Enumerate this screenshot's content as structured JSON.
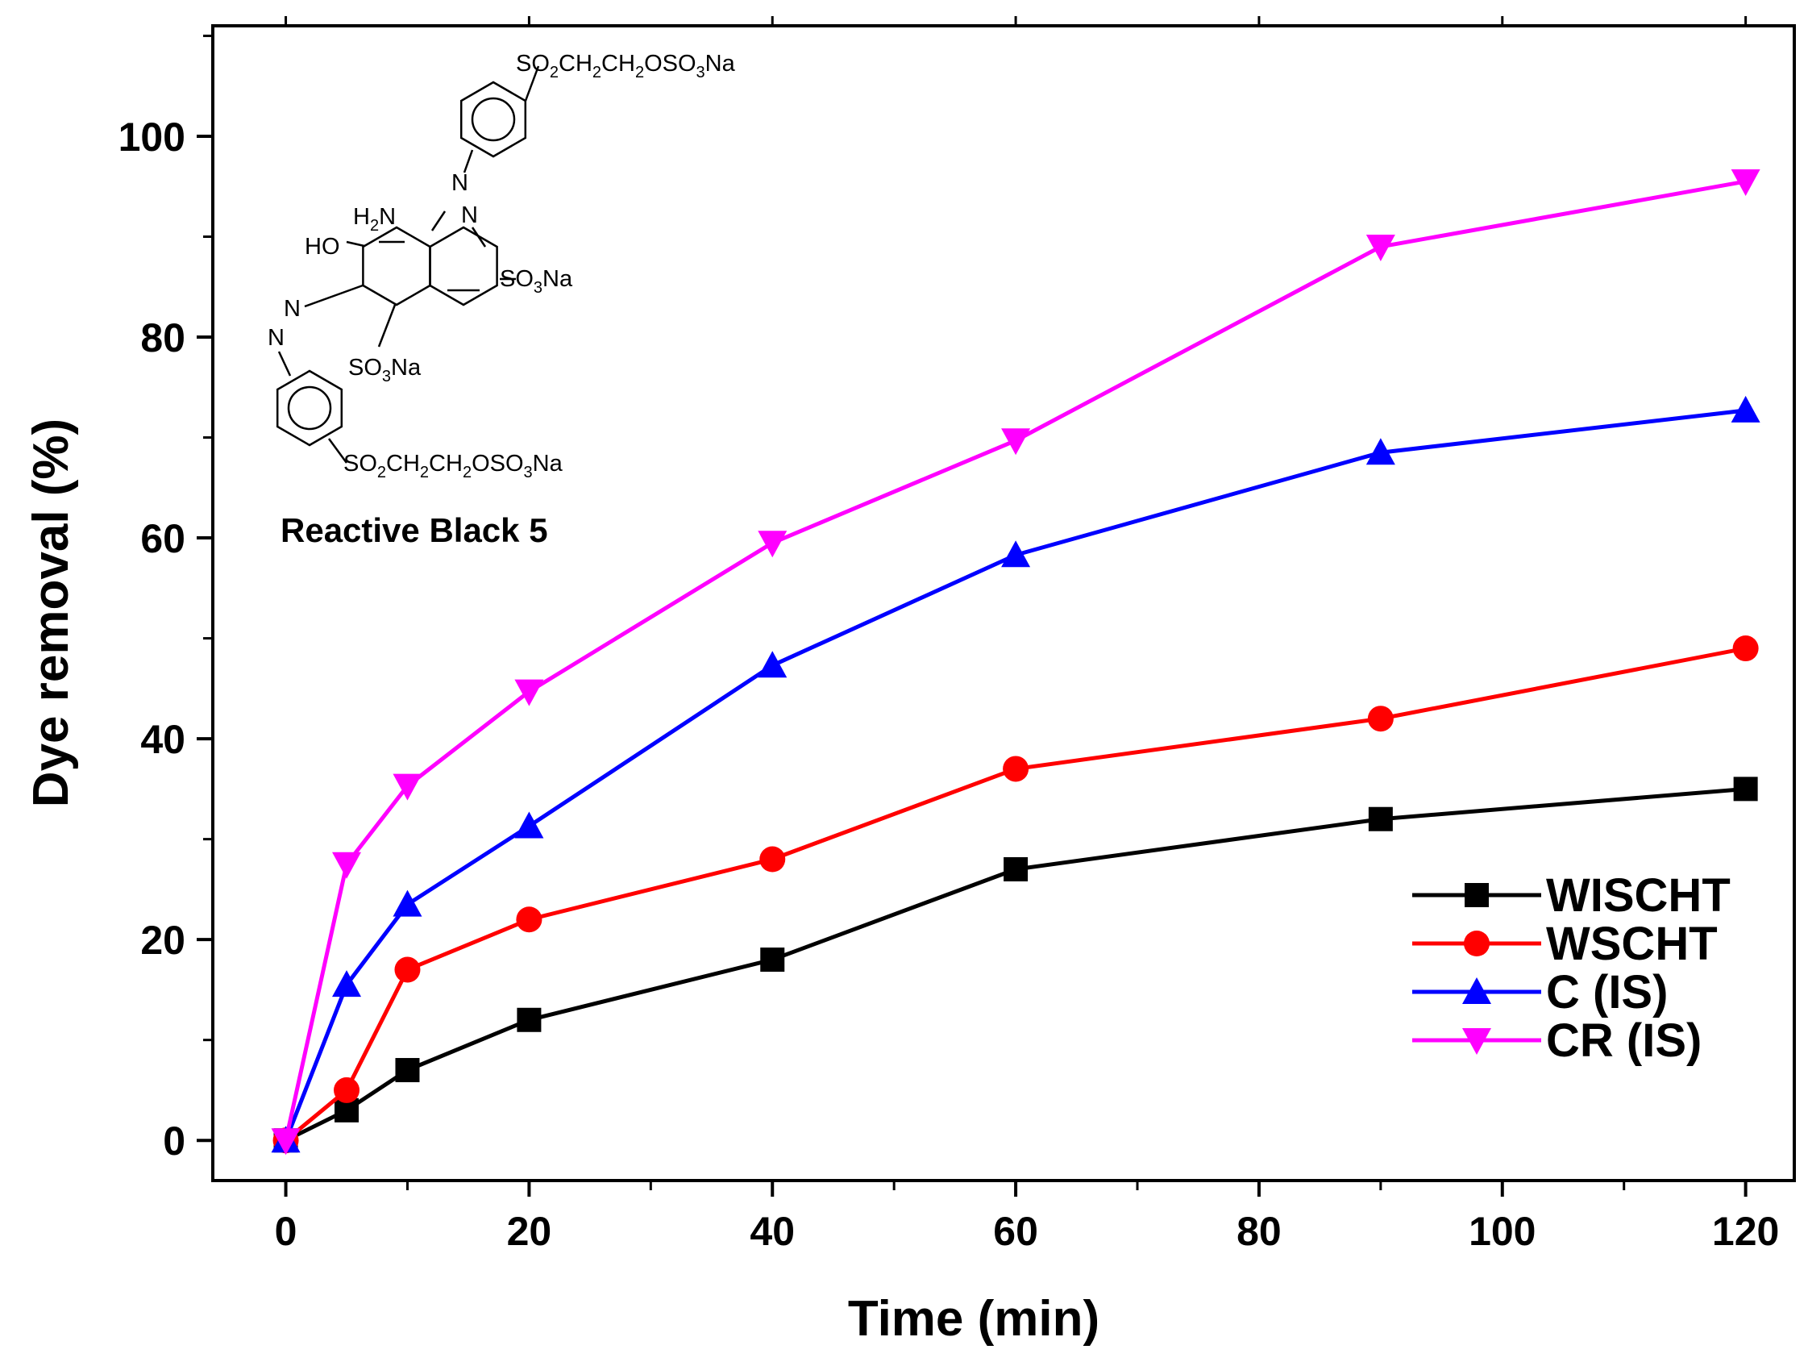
{
  "chart_data": {
    "type": "line",
    "title": "",
    "xlabel": "Time (min)",
    "ylabel": "Dye removal (%)",
    "xlim": [
      -6,
      124
    ],
    "ylim": [
      -4,
      111
    ],
    "xticks": [
      0,
      20,
      40,
      60,
      80,
      100,
      120
    ],
    "yticks": [
      0,
      20,
      40,
      60,
      80,
      100
    ],
    "x": [
      0,
      5,
      10,
      20,
      40,
      60,
      90,
      120
    ],
    "series": [
      {
        "name": "WISCHT",
        "color": "#000000",
        "marker": "square",
        "values": [
          0,
          3,
          7,
          12,
          18,
          27,
          32,
          35
        ]
      },
      {
        "name": "WSCHT",
        "color": "#ff0000",
        "marker": "circle",
        "values": [
          0,
          5,
          17,
          22,
          28,
          37,
          42,
          49
        ]
      },
      {
        "name": "C (IS)",
        "color": "#0000ff",
        "marker": "triangle-up",
        "values": [
          0,
          15.5,
          23.5,
          31.3,
          47.3,
          58.3,
          68.5,
          72.7
        ]
      },
      {
        "name": "CR (IS)",
        "color": "#ff00ff",
        "marker": "triangle-down",
        "values": [
          0,
          27.5,
          35.3,
          44.7,
          59.5,
          69.7,
          89,
          95.5
        ]
      }
    ],
    "grid": false,
    "legend_position": "bottom-right"
  },
  "inset": {
    "compound_name": "Reactive Black 5",
    "groups": {
      "top_chain": {
        "main": "SO",
        "s1": "2",
        "m1": "CH",
        "s2": "2",
        "m2": "CH",
        "s3": "2",
        "m3": "OSO",
        "s4": "3",
        "m4": "Na"
      },
      "bottom_chain": {
        "main": "SO",
        "s1": "2",
        "m1": "CH",
        "s2": "2",
        "m2": "CH",
        "s3": "2",
        "m3": "OSO",
        "s4": "3",
        "m4": "Na"
      },
      "right_sulfonate": {
        "main": "SO",
        "s1": "3",
        "m1": "Na"
      },
      "lower_sulfonate": {
        "main": "SO",
        "s1": "3",
        "m1": "Na"
      },
      "amino": {
        "main": "H",
        "s1": "2",
        "m1": "N"
      },
      "hydroxyl": "HO",
      "azo_nitrogen": "N"
    }
  }
}
